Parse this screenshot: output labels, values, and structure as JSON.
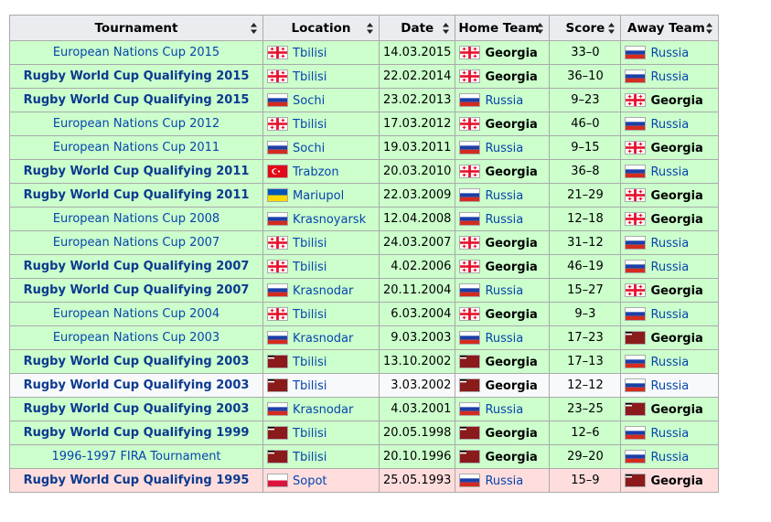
{
  "headers": {
    "tournament": "Tournament",
    "location": "Location",
    "date": "Date",
    "home": "Home Team",
    "score": "Score",
    "away": "Away Team"
  },
  "rows": [
    {
      "tournament": "European Nations Cup 2015",
      "rwc": false,
      "loc_flag": "georgia",
      "location": "Tbilisi",
      "date": "14.03.2015",
      "home_flag": "georgia",
      "home": "Georgia",
      "score": "33–0",
      "away_flag": "russia",
      "away": "Russia",
      "result": "win"
    },
    {
      "tournament": "Rugby World Cup Qualifying 2015",
      "rwc": true,
      "loc_flag": "georgia",
      "location": "Tbilisi",
      "date": "22.02.2014",
      "home_flag": "georgia",
      "home": "Georgia",
      "score": "36–10",
      "away_flag": "russia",
      "away": "Russia",
      "result": "win"
    },
    {
      "tournament": "Rugby World Cup Qualifying 2015",
      "rwc": true,
      "loc_flag": "russia",
      "location": "Sochi",
      "date": "23.02.2013",
      "home_flag": "russia",
      "home": "Russia",
      "score": "9–23",
      "away_flag": "georgia",
      "away": "Georgia",
      "result": "win"
    },
    {
      "tournament": "European Nations Cup 2012",
      "rwc": false,
      "loc_flag": "georgia",
      "location": "Tbilisi",
      "date": "17.03.2012",
      "home_flag": "georgia",
      "home": "Georgia",
      "score": "46–0",
      "away_flag": "russia",
      "away": "Russia",
      "result": "win"
    },
    {
      "tournament": "European Nations Cup 2011",
      "rwc": false,
      "loc_flag": "russia",
      "location": "Sochi",
      "date": "19.03.2011",
      "home_flag": "russia",
      "home": "Russia",
      "score": "9–15",
      "away_flag": "georgia",
      "away": "Georgia",
      "result": "win"
    },
    {
      "tournament": "Rugby World Cup Qualifying 2011",
      "rwc": true,
      "loc_flag": "turkey",
      "location": "Trabzon",
      "date": "20.03.2010",
      "home_flag": "georgia",
      "home": "Georgia",
      "score": "36–8",
      "away_flag": "russia",
      "away": "Russia",
      "result": "win"
    },
    {
      "tournament": "Rugby World Cup Qualifying 2011",
      "rwc": true,
      "loc_flag": "ukraine",
      "location": "Mariupol",
      "date": "22.03.2009",
      "home_flag": "russia",
      "home": "Russia",
      "score": "21–29",
      "away_flag": "georgia",
      "away": "Georgia",
      "result": "win"
    },
    {
      "tournament": "European Nations Cup 2008",
      "rwc": false,
      "loc_flag": "russia",
      "location": "Krasnoyarsk",
      "date": "12.04.2008",
      "home_flag": "russia",
      "home": "Russia",
      "score": "12–18",
      "away_flag": "georgia",
      "away": "Georgia",
      "result": "win"
    },
    {
      "tournament": "European Nations Cup 2007",
      "rwc": false,
      "loc_flag": "georgia",
      "location": "Tbilisi",
      "date": "24.03.2007",
      "home_flag": "georgia",
      "home": "Georgia",
      "score": "31–12",
      "away_flag": "russia",
      "away": "Russia",
      "result": "win"
    },
    {
      "tournament": "Rugby World Cup Qualifying 2007",
      "rwc": true,
      "loc_flag": "georgia",
      "location": "Tbilisi",
      "date": "4.02.2006",
      "home_flag": "georgia",
      "home": "Georgia",
      "score": "46–19",
      "away_flag": "russia",
      "away": "Russia",
      "result": "win"
    },
    {
      "tournament": "Rugby World Cup Qualifying 2007",
      "rwc": true,
      "loc_flag": "russia",
      "location": "Krasnodar",
      "date": "20.11.2004",
      "home_flag": "russia",
      "home": "Russia",
      "score": "15–27",
      "away_flag": "georgia",
      "away": "Georgia",
      "result": "win"
    },
    {
      "tournament": "European Nations Cup 2004",
      "rwc": false,
      "loc_flag": "georgia",
      "location": "Tbilisi",
      "date": "6.03.2004",
      "home_flag": "georgia",
      "home": "Georgia",
      "score": "9–3",
      "away_flag": "russia",
      "away": "Russia",
      "result": "win"
    },
    {
      "tournament": "European Nations Cup 2003",
      "rwc": false,
      "loc_flag": "russia",
      "location": "Krasnodar",
      "date": "9.03.2003",
      "home_flag": "russia",
      "home": "Russia",
      "score": "17–23",
      "away_flag": "georgia-old",
      "away": "Georgia",
      "result": "win"
    },
    {
      "tournament": "Rugby World Cup Qualifying 2003",
      "rwc": true,
      "loc_flag": "georgia-old",
      "location": "Tbilisi",
      "date": "13.10.2002",
      "home_flag": "georgia-old",
      "home": "Georgia",
      "score": "17–13",
      "away_flag": "russia",
      "away": "Russia",
      "result": "win"
    },
    {
      "tournament": "Rugby World Cup Qualifying 2003",
      "rwc": true,
      "loc_flag": "georgia-old",
      "location": "Tbilisi",
      "date": "3.03.2002",
      "home_flag": "georgia-old",
      "home": "Georgia",
      "score": "12–12",
      "away_flag": "russia",
      "away": "Russia",
      "result": "draw"
    },
    {
      "tournament": "Rugby World Cup Qualifying 2003",
      "rwc": true,
      "loc_flag": "russia",
      "location": "Krasnodar",
      "date": "4.03.2001",
      "home_flag": "russia",
      "home": "Russia",
      "score": "23–25",
      "away_flag": "georgia-old",
      "away": "Georgia",
      "result": "win"
    },
    {
      "tournament": "Rugby World Cup Qualifying 1999",
      "rwc": true,
      "loc_flag": "georgia-old",
      "location": "Tbilisi",
      "date": "20.05.1998",
      "home_flag": "georgia-old",
      "home": "Georgia",
      "score": "12–6",
      "away_flag": "russia",
      "away": "Russia",
      "result": "win"
    },
    {
      "tournament": "1996-1997 FIRA Tournament",
      "rwc": false,
      "loc_flag": "georgia-old",
      "location": "Tbilisi",
      "date": "20.10.1996",
      "home_flag": "georgia-old",
      "home": "Georgia",
      "score": "29–20",
      "away_flag": "russia",
      "away": "Russia",
      "result": "win"
    },
    {
      "tournament": "Rugby World Cup Qualifying 1995",
      "rwc": true,
      "loc_flag": "poland",
      "location": "Sopot",
      "date": "25.05.1993",
      "home_flag": "russia",
      "home": "Russia",
      "score": "15–9",
      "away_flag": "georgia-old",
      "away": "Georgia",
      "result": "loss"
    }
  ],
  "colors": {
    "win": "#ccffcc",
    "draw": "#f8f9fa",
    "loss": "#ffdddd",
    "link": "#0645ad",
    "header_bg": "#eaecf0"
  }
}
